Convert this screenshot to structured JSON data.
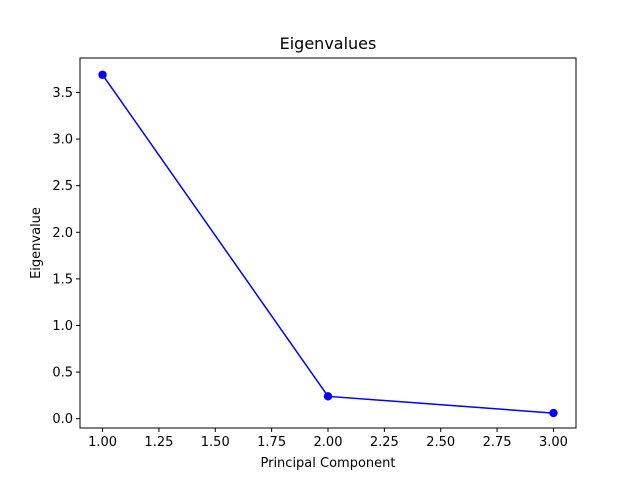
{
  "chart_data": {
    "type": "line",
    "title": "Eigenvalues",
    "xlabel": "Principal Component",
    "ylabel": "Eigenvalue",
    "xlim": [
      0.9,
      3.1
    ],
    "ylim": [
      -0.1,
      3.87
    ],
    "x_ticks": [
      1.0,
      1.25,
      1.5,
      1.75,
      2.0,
      2.25,
      2.5,
      2.75,
      3.0
    ],
    "x_tick_labels": [
      "1.00",
      "1.25",
      "1.50",
      "1.75",
      "2.00",
      "2.25",
      "2.50",
      "2.75",
      "3.00"
    ],
    "y_ticks": [
      0.0,
      0.5,
      1.0,
      1.5,
      2.0,
      2.5,
      3.0,
      3.5
    ],
    "y_tick_labels": [
      "0.0",
      "0.5",
      "1.0",
      "1.5",
      "2.0",
      "2.5",
      "3.0",
      "3.5"
    ],
    "grid": false,
    "series": [
      {
        "x": [
          1,
          2,
          3
        ],
        "y": [
          3.69,
          0.24,
          0.06
        ],
        "color": "#0000ff",
        "marker": "circle"
      }
    ]
  }
}
